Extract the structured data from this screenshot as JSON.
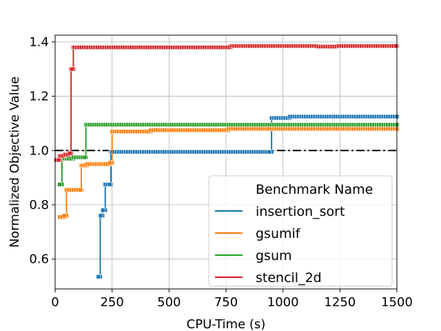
{
  "chart_data": {
    "type": "line",
    "title": "",
    "xlabel": "CPU-Time (s)",
    "ylabel": "Normalized Objective Value",
    "xlim": [
      0,
      1500
    ],
    "ylim": [
      0.49,
      1.425
    ],
    "x_ticks": [
      0,
      250,
      500,
      750,
      1000,
      1250,
      1500
    ],
    "y_ticks": [
      0.6,
      0.8,
      1.0,
      1.2,
      1.4
    ],
    "x_tick_labels": [
      "0",
      "250",
      "500",
      "750",
      "1000",
      "1250",
      "1500"
    ],
    "y_tick_labels": [
      "0.6",
      "0.8",
      "1.0",
      "1.2",
      "1.4"
    ],
    "grid": true,
    "reference_line": {
      "y": 1.0,
      "style": "dash-dot",
      "color": "#000000"
    },
    "legend": {
      "title": "Benchmark Name",
      "placement": "lower-right"
    },
    "series": [
      {
        "name": "insertion_sort",
        "color": "#1f77b4",
        "steps": [
          [
            190,
            0.535
          ],
          [
            198,
            0.76
          ],
          [
            208,
            0.78
          ],
          [
            220,
            0.875
          ],
          [
            232,
            0.875
          ],
          [
            245,
            0.995
          ],
          [
            930,
            0.995
          ],
          [
            950,
            1.12
          ],
          [
            990,
            1.12
          ],
          [
            1030,
            1.125
          ],
          [
            1500,
            1.125
          ]
        ]
      },
      {
        "name": "gsumif",
        "color": "#ff7f0e",
        "steps": [
          [
            20,
            0.755
          ],
          [
            40,
            0.76
          ],
          [
            50,
            0.855
          ],
          [
            100,
            0.855
          ],
          [
            115,
            0.945
          ],
          [
            140,
            0.95
          ],
          [
            240,
            0.955
          ],
          [
            250,
            1.07
          ],
          [
            420,
            1.075
          ],
          [
            760,
            1.08
          ],
          [
            1500,
            1.08
          ]
        ]
      },
      {
        "name": "gsum",
        "color": "#2ca02c",
        "steps": [
          [
            20,
            0.875
          ],
          [
            30,
            0.97
          ],
          [
            80,
            0.975
          ],
          [
            125,
            0.975
          ],
          [
            135,
            1.095
          ],
          [
            1500,
            1.095
          ]
        ]
      },
      {
        "name": "stencil_2d",
        "color": "#d62728",
        "steps": [
          [
            5,
            0.965
          ],
          [
            20,
            0.98
          ],
          [
            40,
            0.985
          ],
          [
            60,
            0.99
          ],
          [
            70,
            1.3
          ],
          [
            80,
            1.38
          ],
          [
            760,
            1.38
          ],
          [
            770,
            1.385
          ],
          [
            1140,
            1.385
          ],
          [
            1150,
            1.383
          ],
          [
            1230,
            1.383
          ],
          [
            1240,
            1.385
          ],
          [
            1500,
            1.385
          ]
        ]
      }
    ]
  }
}
